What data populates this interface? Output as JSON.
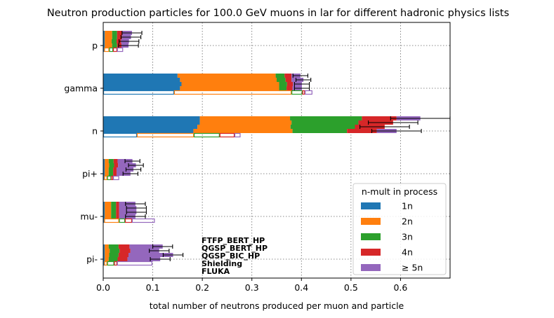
{
  "chart_data": {
    "type": "bar",
    "orientation": "horizontal",
    "stacked": true,
    "title": "Neutron production particles for 100.0 GeV muons in lar for different hadronic physics lists",
    "xlabel": "total number of neutrons produced per muon and particle",
    "ylabel": "",
    "xlim": [
      0,
      0.7
    ],
    "xticks": [
      "0.0",
      "0.1",
      "0.2",
      "0.3",
      "0.4",
      "0.5",
      "0.6"
    ],
    "grid": true,
    "categories": [
      "p",
      "gamma",
      "n",
      "pi+",
      "mu-",
      "pi-"
    ],
    "physics_lists": [
      "FTFP_BERT_HP",
      "QGSP_BERT_HP",
      "QGSP_BIC_HP",
      "Shielding",
      "FLUKA"
    ],
    "physics_list_styles": [
      "filled",
      "filled",
      "filled",
      "filled",
      "outline"
    ],
    "legend": {
      "title": "n-mult in process",
      "position": "lower right",
      "entries": [
        "1n",
        "2n",
        "3n",
        "4n",
        "≥ 5n"
      ]
    },
    "series_colors": {
      "1n": "#1f77b4",
      "2n": "#ff7f0e",
      "3n": "#2ca02c",
      "4n": "#d62728",
      "5n": "#9467bd"
    },
    "series": [
      {
        "name": "1n",
        "values": {
          "p": [
            0.003,
            0.003,
            0.003,
            0.003,
            0.002
          ],
          "gamma": [
            0.15,
            0.155,
            0.158,
            0.155,
            0.143
          ],
          "n": [
            0.195,
            0.195,
            0.19,
            0.182,
            0.068
          ],
          "pi+": [
            0.003,
            0.003,
            0.003,
            0.003,
            0.002
          ],
          "mu-": [
            0.003,
            0.003,
            0.003,
            0.003,
            0.002
          ],
          "pi-": [
            0.003,
            0.003,
            0.003,
            0.003,
            0.002
          ]
        }
      },
      {
        "name": "2n",
        "values": {
          "p": [
            0.015,
            0.015,
            0.014,
            0.015,
            0.01
          ],
          "gamma": [
            0.198,
            0.195,
            0.197,
            0.2,
            0.237
          ],
          "n": [
            0.182,
            0.185,
            0.188,
            0.2,
            0.115
          ],
          "pi+": [
            0.008,
            0.009,
            0.008,
            0.008,
            0.006
          ],
          "mu-": [
            0.013,
            0.013,
            0.013,
            0.013,
            0.03
          ],
          "pi-": [
            0.008,
            0.01,
            0.009,
            0.008,
            0.006
          ]
        }
      },
      {
        "name": "3n",
        "values": {
          "p": [
            0.01,
            0.01,
            0.01,
            0.01,
            0.008
          ],
          "gamma": [
            0.018,
            0.018,
            0.016,
            0.015,
            0.022
          ],
          "n": [
            0.145,
            0.135,
            0.13,
            0.11,
            0.052
          ],
          "pi+": [
            0.01,
            0.01,
            0.009,
            0.009,
            0.008
          ],
          "mu-": [
            0.01,
            0.01,
            0.01,
            0.01,
            0.012
          ],
          "pi-": [
            0.02,
            0.02,
            0.019,
            0.018,
            0.014
          ]
        }
      },
      {
        "name": "4n",
        "values": {
          "p": [
            0.01,
            0.01,
            0.009,
            0.009,
            0.008
          ],
          "gamma": [
            0.014,
            0.012,
            0.012,
            0.012,
            0.005
          ],
          "n": [
            0.07,
            0.07,
            0.06,
            0.06,
            0.03
          ],
          "pi+": [
            0.008,
            0.008,
            0.007,
            0.007,
            0.004
          ],
          "mu-": [
            0.006,
            0.006,
            0.006,
            0.006,
            0.014
          ],
          "pi-": [
            0.022,
            0.022,
            0.02,
            0.02,
            0.006
          ]
        }
      },
      {
        "name": "≥ 5n",
        "values": {
          "p": [
            0.02,
            0.018,
            0.016,
            0.014,
            0.012
          ],
          "gamma": [
            0.018,
            0.024,
            0.018,
            0.019,
            0.015
          ],
          "n": [
            0.048,
            0.0,
            0.0,
            0.04,
            0.012
          ],
          "pi+": [
            0.03,
            0.036,
            0.034,
            0.028,
            0.012
          ],
          "mu-": [
            0.033,
            0.035,
            0.035,
            0.033,
            0.046
          ],
          "pi-": [
            0.067,
            0.058,
            0.09,
            0.066,
            0.071
          ]
        }
      }
    ],
    "errors": {
      "p": [
        0.02,
        0.02,
        0.02,
        0.02
      ],
      "gamma": [
        0.015,
        0.015,
        0.015,
        0.015
      ],
      "n": [
        0.06,
        0.05,
        0.05,
        0.05
      ],
      "pi+": [
        0.015,
        0.015,
        0.015,
        0.015
      ],
      "mu-": [
        0.02,
        0.02,
        0.02,
        0.02
      ],
      "pi-": [
        0.02,
        0.02,
        0.02,
        0.02
      ]
    }
  }
}
